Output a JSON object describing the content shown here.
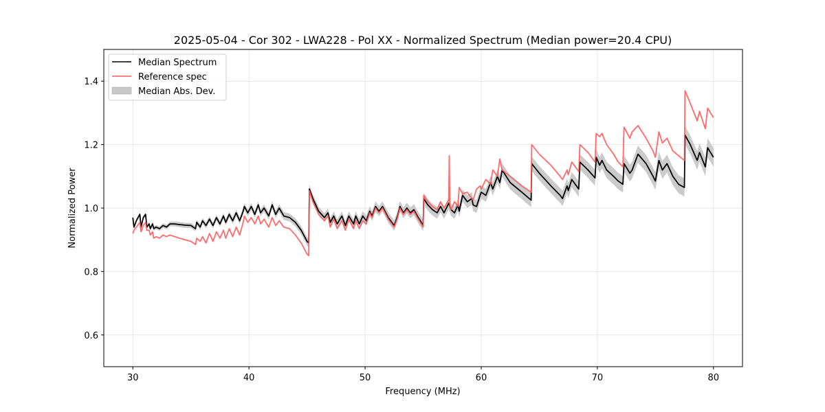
{
  "chart_data": {
    "type": "line",
    "title": "2025-05-04 - Cor 302 - LWA228 - Pol XX - Normalized Spectrum (Median power=20.4 CPU)",
    "xlabel": "Frequency (MHz)",
    "ylabel": "Normalized Power",
    "xlim": [
      27.5,
      82.5
    ],
    "ylim": [
      0.5,
      1.5
    ],
    "xticks": [
      30,
      40,
      50,
      60,
      70,
      80
    ],
    "xtick_labels": [
      "30",
      "40",
      "50",
      "60",
      "70",
      "80"
    ],
    "yticks": [
      0.6,
      0.8,
      1.0,
      1.2,
      1.4
    ],
    "ytick_labels": [
      "0.6",
      "0.8",
      "1.0",
      "1.2",
      "1.4"
    ],
    "grid": true,
    "legend": {
      "position": "top-left",
      "entries": [
        {
          "label": "Median Spectrum",
          "kind": "line",
          "color": "#000000"
        },
        {
          "label": "Reference spec",
          "kind": "line",
          "color": "#ff5a5a"
        },
        {
          "label": "Median Abs. Dev.",
          "kind": "band",
          "color": "#c8c8c8"
        }
      ]
    },
    "series": [
      {
        "name": "Median Spectrum",
        "color": "#000000",
        "x": [
          30.0,
          30.1,
          30.3,
          30.6,
          30.7,
          30.9,
          31.1,
          31.2,
          31.4,
          31.5,
          31.7,
          31.8,
          32.0,
          32.3,
          32.6,
          32.9,
          33.2,
          33.6,
          34.0,
          34.5,
          35.0,
          35.4,
          35.5,
          35.8,
          36.0,
          36.3,
          36.6,
          36.9,
          37.2,
          37.5,
          37.8,
          38.0,
          38.3,
          38.6,
          38.9,
          39.2,
          39.5,
          39.6,
          39.9,
          40.2,
          40.5,
          40.8,
          41.0,
          41.3,
          41.7,
          42.0,
          42.3,
          42.6,
          43.0,
          43.5,
          44.0,
          44.5,
          45.0,
          45.15,
          45.2,
          45.5,
          46.0,
          46.5,
          46.8,
          47.0,
          47.3,
          47.6,
          48.0,
          48.3,
          48.6,
          49.0,
          49.2,
          49.5,
          49.8,
          50.1,
          50.4,
          50.6,
          50.9,
          51.2,
          51.5,
          52.0,
          52.5,
          52.7,
          52.8,
          53.0,
          53.3,
          53.6,
          53.9,
          54.2,
          54.5,
          55.0,
          55.05,
          55.4,
          55.8,
          56.2,
          56.5,
          56.8,
          57.2,
          57.4,
          57.7,
          58.0,
          58.1,
          58.4,
          58.8,
          59.2,
          59.3,
          59.6,
          59.9,
          60.0,
          60.4,
          60.8,
          61.0,
          61.4,
          61.6,
          61.8,
          62.5,
          63.5,
          64.3,
          64.35,
          65.0,
          66.0,
          66.8,
          67.0,
          67.4,
          67.5,
          67.8,
          68.4,
          68.5,
          69.2,
          69.8,
          69.9,
          70.2,
          70.4,
          70.8,
          71.4,
          71.8,
          72.2,
          72.3,
          72.8,
          73.0,
          73.5,
          74.2,
          74.8,
          75.0,
          75.3,
          75.6,
          76.0,
          76.5,
          77.0,
          77.5,
          77.55,
          78.0,
          78.6,
          78.8,
          79.3,
          79.5,
          80.0
        ],
        "values": [
          0.97,
          0.94,
          0.96,
          0.98,
          0.94,
          0.97,
          0.98,
          0.94,
          0.95,
          0.935,
          0.95,
          0.935,
          0.94,
          0.935,
          0.945,
          0.94,
          0.95,
          0.95,
          0.948,
          0.946,
          0.945,
          0.935,
          0.955,
          0.94,
          0.96,
          0.945,
          0.965,
          0.945,
          0.97,
          0.95,
          0.975,
          0.955,
          0.98,
          0.96,
          0.985,
          0.96,
          0.99,
          1.005,
          0.985,
          1.005,
          0.98,
          1.01,
          0.985,
          1.0,
          0.975,
          1.01,
          0.98,
          1.0,
          0.975,
          0.97,
          0.955,
          0.93,
          0.895,
          0.89,
          1.06,
          1.03,
          0.99,
          0.97,
          0.985,
          0.955,
          0.975,
          0.95,
          0.975,
          0.945,
          0.975,
          0.95,
          0.975,
          0.95,
          0.975,
          0.96,
          0.99,
          0.975,
          1.005,
          0.99,
          1.005,
          0.97,
          0.945,
          0.965,
          0.975,
          1.005,
          0.985,
          1.0,
          0.985,
          0.995,
          0.975,
          0.945,
          1.03,
          1.01,
          0.995,
          0.985,
          1.005,
          0.985,
          1.015,
          0.995,
          0.985,
          1.01,
          0.99,
          1.04,
          1.02,
          1.03,
          1.01,
          1.005,
          1.04,
          1.05,
          1.04,
          1.08,
          1.06,
          1.1,
          1.08,
          1.12,
          1.08,
          1.05,
          1.025,
          1.14,
          1.11,
          1.07,
          1.04,
          1.03,
          1.07,
          1.055,
          1.09,
          1.06,
          1.145,
          1.12,
          1.095,
          1.16,
          1.135,
          1.15,
          1.12,
          1.1,
          1.085,
          1.075,
          1.14,
          1.11,
          1.12,
          1.17,
          1.14,
          1.1,
          1.085,
          1.15,
          1.12,
          1.14,
          1.1,
          1.075,
          1.065,
          1.23,
          1.2,
          1.15,
          1.175,
          1.13,
          1.19,
          1.16
        ]
      },
      {
        "name": "Reference spec",
        "color": "#ff5a5a",
        "x": [
          30.0,
          30.1,
          30.3,
          30.6,
          30.7,
          30.9,
          31.1,
          31.2,
          31.4,
          31.5,
          31.7,
          31.8,
          32.0,
          32.3,
          32.6,
          32.9,
          33.2,
          33.6,
          34.0,
          34.5,
          35.0,
          35.4,
          35.5,
          35.8,
          36.0,
          36.3,
          36.6,
          36.9,
          37.2,
          37.5,
          37.8,
          38.0,
          38.3,
          38.6,
          38.9,
          39.2,
          39.5,
          39.6,
          39.9,
          40.2,
          40.5,
          40.8,
          41.0,
          41.3,
          41.7,
          42.0,
          42.3,
          42.6,
          43.0,
          43.5,
          44.0,
          44.5,
          45.0,
          45.15,
          45.2,
          45.5,
          46.0,
          46.5,
          46.8,
          47.0,
          47.3,
          47.6,
          48.0,
          48.3,
          48.6,
          49.0,
          49.2,
          49.5,
          49.8,
          50.1,
          50.4,
          50.6,
          50.9,
          51.2,
          51.5,
          52.0,
          52.5,
          52.7,
          52.8,
          53.0,
          53.3,
          53.6,
          53.9,
          54.2,
          54.5,
          55.0,
          55.05,
          55.4,
          55.8,
          56.2,
          56.5,
          56.8,
          57.2,
          57.25,
          57.3,
          57.4,
          57.7,
          58.0,
          58.1,
          58.4,
          58.8,
          59.2,
          59.3,
          59.6,
          59.9,
          60.0,
          60.4,
          60.8,
          61.0,
          61.4,
          61.6,
          61.8,
          62.5,
          63.5,
          64.3,
          64.35,
          65.0,
          66.0,
          66.8,
          67.0,
          67.4,
          67.5,
          67.8,
          68.4,
          68.5,
          69.2,
          69.8,
          69.9,
          70.2,
          70.4,
          70.8,
          71.4,
          71.8,
          72.2,
          72.3,
          72.8,
          73.0,
          73.5,
          74.2,
          74.8,
          75.0,
          75.3,
          75.6,
          76.0,
          76.5,
          77.0,
          77.5,
          77.55,
          78.0,
          78.6,
          78.8,
          79.3,
          79.5,
          80.0
        ],
        "values": [
          0.92,
          0.93,
          0.94,
          0.955,
          0.925,
          0.945,
          0.955,
          0.93,
          0.93,
          0.915,
          0.925,
          0.905,
          0.91,
          0.905,
          0.915,
          0.91,
          0.915,
          0.91,
          0.905,
          0.9,
          0.895,
          0.885,
          0.905,
          0.895,
          0.91,
          0.89,
          0.92,
          0.895,
          0.925,
          0.905,
          0.93,
          0.905,
          0.935,
          0.91,
          0.94,
          0.915,
          0.955,
          0.975,
          0.955,
          0.97,
          0.95,
          0.975,
          0.95,
          0.965,
          0.94,
          0.97,
          0.945,
          0.96,
          0.94,
          0.935,
          0.915,
          0.89,
          0.855,
          0.85,
          1.055,
          1.02,
          0.98,
          0.96,
          0.975,
          0.94,
          0.965,
          0.935,
          0.96,
          0.93,
          0.965,
          0.935,
          0.96,
          0.935,
          0.96,
          0.95,
          0.985,
          0.97,
          1.0,
          0.985,
          1.0,
          0.965,
          0.94,
          0.96,
          0.97,
          1.0,
          0.98,
          0.995,
          0.98,
          0.99,
          0.97,
          0.94,
          1.04,
          1.02,
          1.005,
          0.995,
          1.02,
          1.0,
          1.025,
          1.165,
          1.005,
          0.995,
          1.02,
          1.005,
          1.065,
          1.045,
          1.05,
          1.03,
          1.025,
          1.06,
          1.07,
          1.06,
          1.09,
          1.075,
          1.12,
          1.1,
          1.155,
          1.12,
          1.1,
          1.07,
          1.05,
          1.2,
          1.17,
          1.135,
          1.1,
          1.09,
          1.12,
          1.105,
          1.145,
          1.115,
          1.2,
          1.175,
          1.145,
          1.235,
          1.225,
          1.235,
          1.2,
          1.17,
          1.145,
          1.13,
          1.255,
          1.22,
          1.24,
          1.26,
          1.22,
          1.18,
          1.16,
          1.24,
          1.205,
          1.22,
          1.18,
          1.165,
          1.15,
          1.37,
          1.33,
          1.275,
          1.305,
          1.25,
          1.315,
          1.285
        ]
      }
    ],
    "band": {
      "name": "Median Abs. Dev.",
      "color": "#c8c8c8",
      "around_series": "Median Spectrum",
      "half_width_at_30MHz": 0.006,
      "half_width_at_80MHz": 0.03
    }
  }
}
